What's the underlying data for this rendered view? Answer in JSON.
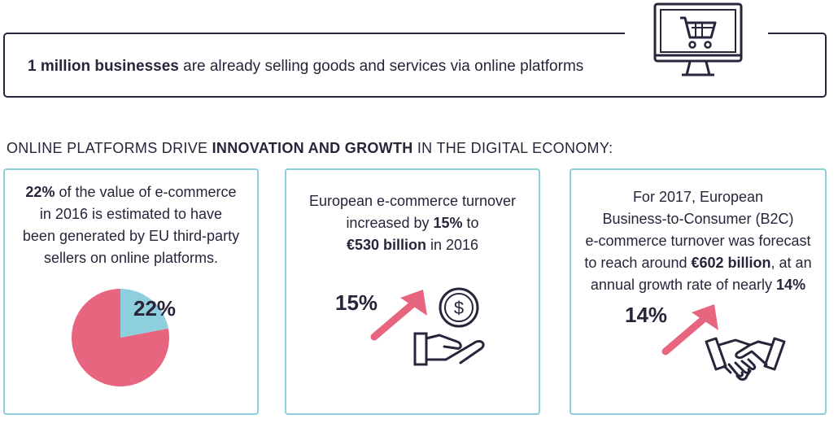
{
  "banner": {
    "bold": "1 million businesses",
    "rest": " are already selling goods and services via online platforms",
    "icon": "shopping-cart-monitor-icon"
  },
  "heading": {
    "pre": "ONLINE PLATFORMS DRIVE ",
    "bold": "INNOVATION AND GROWTH",
    "post": " IN THE DIGITAL ECONOMY:"
  },
  "cards": [
    {
      "lines": [
        {
          "parts": [
            {
              "b": "22%"
            },
            {
              "t": " of the value of e-commerce"
            }
          ]
        },
        {
          "parts": [
            {
              "t": "in 2016 is estimated to have"
            }
          ]
        },
        {
          "parts": [
            {
              "t": "been generated by EU third-party"
            }
          ]
        },
        {
          "parts": [
            {
              "t": "sellers on online platforms."
            }
          ]
        }
      ],
      "figure": "22%",
      "pie": {
        "share": 0.22,
        "colors": {
          "share": "#8ecfdd",
          "rest": "#e8657f"
        }
      }
    },
    {
      "lines": [
        {
          "parts": [
            {
              "t": "European e-commerce turnover"
            }
          ]
        },
        {
          "parts": [
            {
              "t": "increased by "
            },
            {
              "b": "15%"
            },
            {
              "t": " to"
            }
          ]
        },
        {
          "parts": [
            {
              "b": "€530 billion"
            },
            {
              "t": " in 2016"
            }
          ]
        }
      ],
      "figure": "15%",
      "icons": [
        "up-arrow-icon",
        "coin-in-hand-icon"
      ]
    },
    {
      "lines": [
        {
          "parts": [
            {
              "t": "For 2017, European"
            }
          ]
        },
        {
          "parts": [
            {
              "t": "Business-to-Consumer (B2C)"
            }
          ]
        },
        {
          "parts": [
            {
              "t": "e-commerce turnover was forecast"
            }
          ]
        },
        {
          "parts": [
            {
              "t": "to reach around "
            },
            {
              "b": "€602 billion"
            },
            {
              "t": ", at an"
            }
          ]
        },
        {
          "parts": [
            {
              "t": "annual growth rate of nearly "
            },
            {
              "b": "14%"
            }
          ]
        }
      ],
      "figure": "14%",
      "icons": [
        "up-arrow-icon",
        "handshake-icon"
      ]
    }
  ],
  "colors": {
    "ink": "#2b2339",
    "accent": "#e8657f",
    "border": "#8ecfdd"
  }
}
